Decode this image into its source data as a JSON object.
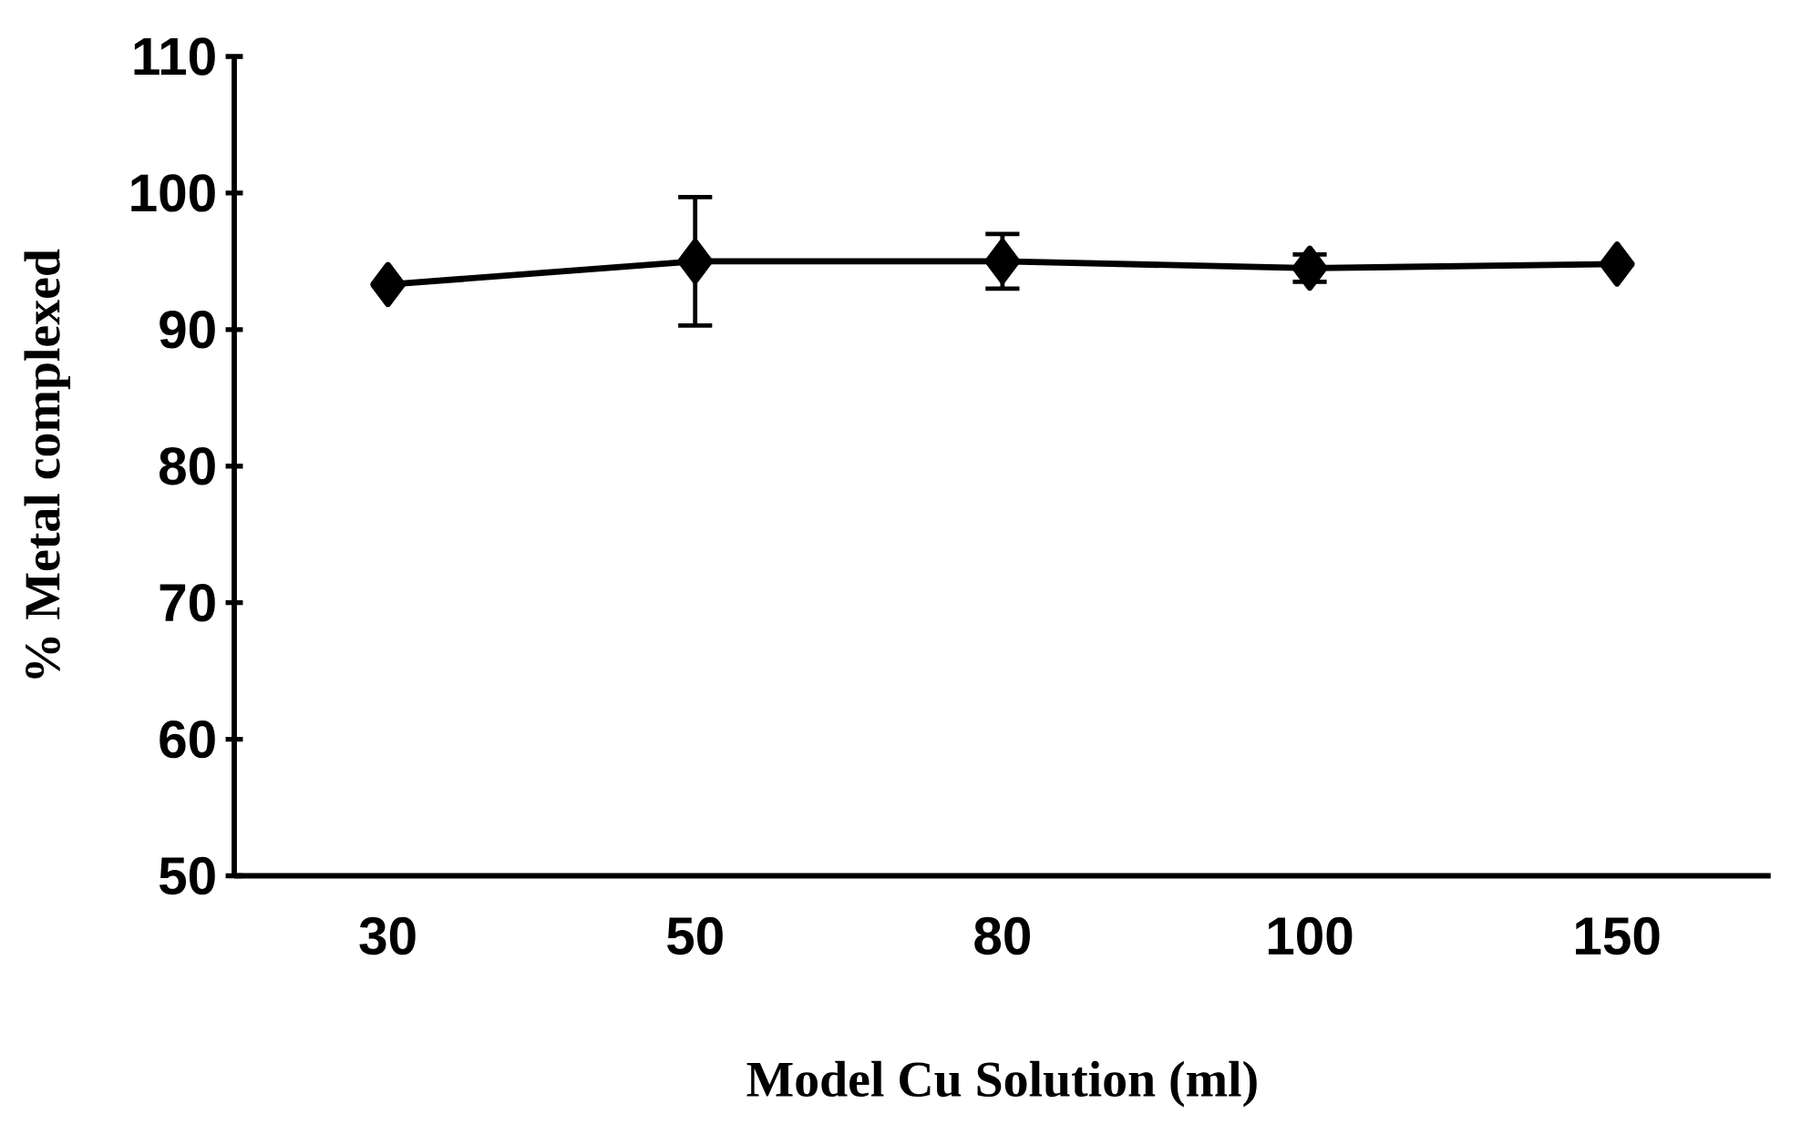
{
  "chart_data": {
    "type": "line",
    "xlabel": "Model Cu Solution (ml)",
    "ylabel": "% Metal complexed",
    "categories": [
      "30",
      "50",
      "80",
      "100",
      "150"
    ],
    "values": [
      93.3,
      95,
      95,
      94.5,
      94.8
    ],
    "errors": [
      null,
      4.7,
      2,
      1,
      null
    ],
    "color": "#000000",
    "marker": "diamond",
    "line_style": "solid",
    "ylim": [
      50,
      110
    ],
    "yticks": [
      50,
      60,
      70,
      80,
      90,
      100,
      110
    ],
    "grid": false
  }
}
